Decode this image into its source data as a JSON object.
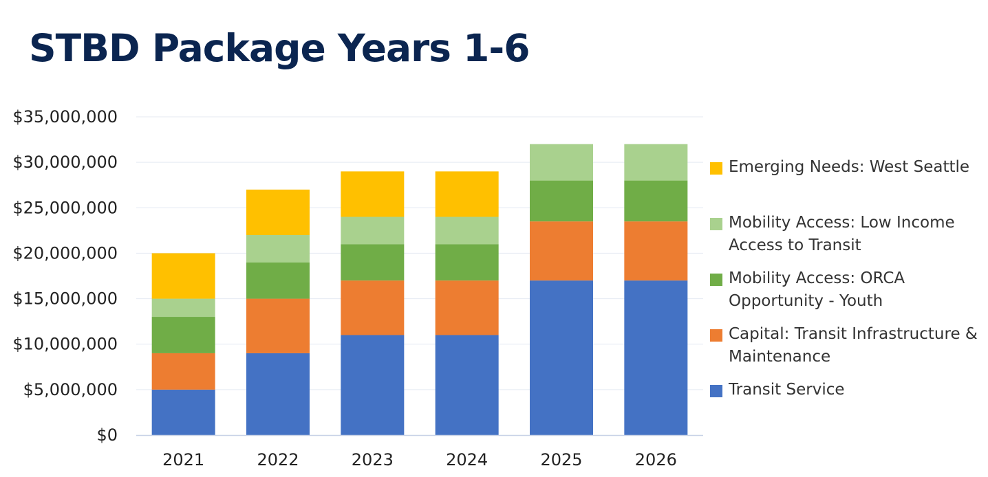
{
  "page": {
    "title": "STBD Package Years 1-6"
  },
  "chart_data": {
    "type": "bar",
    "stacked": true,
    "categories": [
      "2021",
      "2022",
      "2023",
      "2024",
      "2025",
      "2026"
    ],
    "ylim": [
      0,
      35000000
    ],
    "yticks": [
      0,
      5000000,
      10000000,
      15000000,
      20000000,
      25000000,
      30000000,
      35000000
    ],
    "ytick_labels": [
      "$0",
      "$5,000,000",
      "$10,000,000",
      "$15,000,000",
      "$20,000,000",
      "$25,000,000",
      "$30,000,000",
      "$35,000,000"
    ],
    "grid": true,
    "legend_position": "right",
    "series": [
      {
        "name": "Transit Service",
        "color": "#4472C4",
        "values": [
          5000000,
          9000000,
          11000000,
          11000000,
          17000000,
          17000000
        ]
      },
      {
        "name": "Capital: Transit Infrastructure & Maintenance",
        "color": "#ED7D31",
        "values": [
          4000000,
          6000000,
          6000000,
          6000000,
          6500000,
          6500000
        ]
      },
      {
        "name": "Mobility Access: ORCA Opportunity - Youth",
        "color": "#70AD47",
        "values": [
          4000000,
          4000000,
          4000000,
          4000000,
          4500000,
          4500000
        ]
      },
      {
        "name": "Mobility Access: Low Income Access to Transit",
        "color": "#A9D18E",
        "values": [
          2000000,
          3000000,
          3000000,
          3000000,
          4000000,
          4000000
        ]
      },
      {
        "name": "Emerging Needs: West Seattle",
        "color": "#FFC000",
        "values": [
          5000000,
          5000000,
          5000000,
          5000000,
          0,
          0
        ]
      }
    ],
    "legend": [
      {
        "lines": [
          "Emerging Needs: West Seattle"
        ],
        "color": "#FFC000"
      },
      {
        "lines": [
          "Mobility Access: Low Income",
          "Access to Transit"
        ],
        "color": "#A9D18E"
      },
      {
        "lines": [
          "Mobility Access: ORCA",
          "Opportunity - Youth"
        ],
        "color": "#70AD47"
      },
      {
        "lines": [
          "Capital: Transit Infrastructure &",
          "Maintenance"
        ],
        "color": "#ED7D31"
      },
      {
        "lines": [
          "Transit Service"
        ],
        "color": "#4472C4"
      }
    ]
  }
}
